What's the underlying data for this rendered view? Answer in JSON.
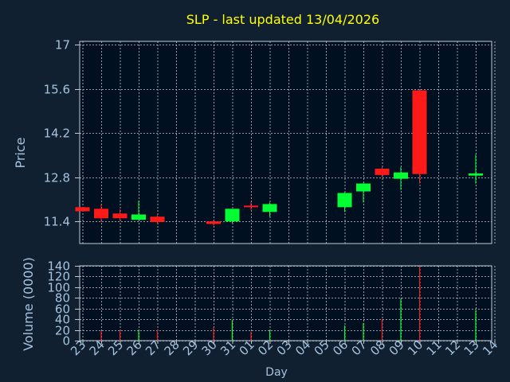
{
  "title": "SLP - last updated 13/04/2026",
  "colors": {
    "background": "#102030",
    "panel": "#001020",
    "grid": "#bfc7cf",
    "axis_text": "#a6c2dd",
    "title": "#ffff00",
    "up": "#00ff33",
    "down": "#ff1a1a"
  },
  "chart_data": [
    {
      "type": "candlestick",
      "ylabel": "Price",
      "ylim": [
        10.7,
        17.1
      ],
      "yticks": [
        "11.4",
        "12.8",
        "14.2",
        "15.6",
        "17"
      ],
      "grid": true,
      "candles": [
        {
          "x": 0,
          "open": 11.85,
          "close": 11.72,
          "high": 11.85,
          "low": 11.72
        },
        {
          "x": 1,
          "open": 11.8,
          "close": 11.5,
          "high": 11.95,
          "low": 11.38
        },
        {
          "x": 2,
          "open": 11.65,
          "close": 11.5,
          "high": 11.78,
          "low": 11.42
        },
        {
          "x": 3,
          "open": 11.45,
          "close": 11.62,
          "high": 12.05,
          "low": 11.45
        },
        {
          "x": 4,
          "open": 11.55,
          "close": 11.38,
          "high": 11.6,
          "low": 11.32
        },
        {
          "x": 7,
          "open": 11.4,
          "close": 11.32,
          "high": 11.45,
          "low": 11.26
        },
        {
          "x": 8,
          "open": 11.4,
          "close": 11.8,
          "high": 11.8,
          "low": 11.35
        },
        {
          "x": 9,
          "open": 11.9,
          "close": 11.88,
          "high": 12.02,
          "low": 11.75
        },
        {
          "x": 10,
          "open": 11.7,
          "close": 11.95,
          "high": 12.0,
          "low": 11.55
        },
        {
          "x": 14,
          "open": 11.85,
          "close": 12.3,
          "high": 12.32,
          "low": 11.7
        },
        {
          "x": 15,
          "open": 12.35,
          "close": 12.6,
          "high": 12.62,
          "low": 12.0
        },
        {
          "x": 16,
          "open": 13.07,
          "close": 12.87,
          "high": 13.12,
          "low": 12.8
        },
        {
          "x": 17,
          "open": 12.75,
          "close": 12.95,
          "high": 13.12,
          "low": 12.4
        },
        {
          "x": 18,
          "open": 15.55,
          "close": 12.9,
          "high": 15.55,
          "low": 12.6
        },
        {
          "x": 21,
          "open": 12.85,
          "close": 12.92,
          "high": 13.52,
          "low": 12.6
        }
      ]
    },
    {
      "type": "bar",
      "ylabel": "Volume (0000)",
      "ylim": [
        0,
        140
      ],
      "yticks": [
        "0",
        "20",
        "40",
        "60",
        "80",
        "100",
        "120",
        "140"
      ],
      "xlabel": "Day",
      "categories": [
        "23",
        "24",
        "25",
        "26",
        "27",
        "28",
        "29",
        "30",
        "31",
        "01",
        "02",
        "03",
        "04",
        "05",
        "06",
        "07",
        "08",
        "09",
        "10",
        "11",
        "12",
        "13",
        "14"
      ],
      "bars": [
        {
          "x": 0,
          "value": 2,
          "dir": "up"
        },
        {
          "x": 1,
          "value": 18,
          "dir": "down"
        },
        {
          "x": 2,
          "value": 20,
          "dir": "down"
        },
        {
          "x": 3,
          "value": 20,
          "dir": "up"
        },
        {
          "x": 4,
          "value": 20,
          "dir": "down"
        },
        {
          "x": 7,
          "value": 25,
          "dir": "down"
        },
        {
          "x": 8,
          "value": 38,
          "dir": "up"
        },
        {
          "x": 9,
          "value": 17,
          "dir": "down"
        },
        {
          "x": 10,
          "value": 20,
          "dir": "up"
        },
        {
          "x": 14,
          "value": 28,
          "dir": "up"
        },
        {
          "x": 15,
          "value": 33,
          "dir": "up"
        },
        {
          "x": 16,
          "value": 40,
          "dir": "down"
        },
        {
          "x": 17,
          "value": 78,
          "dir": "up"
        },
        {
          "x": 18,
          "value": 138,
          "dir": "down"
        },
        {
          "x": 21,
          "value": 57,
          "dir": "up"
        }
      ]
    }
  ]
}
